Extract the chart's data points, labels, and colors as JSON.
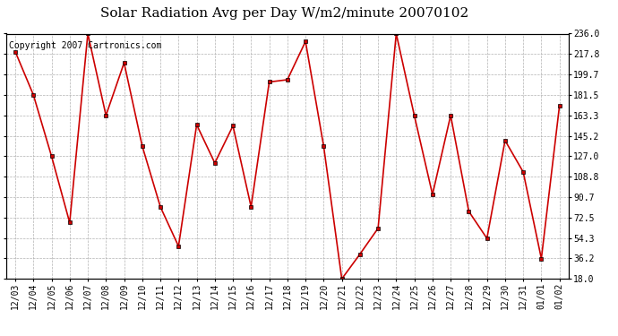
{
  "title": "Solar Radiation Avg per Day W/m2/minute 20070102",
  "copyright": "Copyright 2007 Cartronics.com",
  "dates": [
    "12/03",
    "12/04",
    "12/05",
    "12/06",
    "12/07",
    "12/08",
    "12/09",
    "12/10",
    "12/11",
    "12/12",
    "12/13",
    "12/14",
    "12/15",
    "12/16",
    "12/17",
    "12/18",
    "12/19",
    "12/20",
    "12/21",
    "12/22",
    "12/23",
    "12/24",
    "12/25",
    "12/26",
    "12/27",
    "12/28",
    "12/29",
    "12/30",
    "12/31",
    "01/01",
    "01/02"
  ],
  "values": [
    220,
    181.5,
    127,
    68,
    236,
    163.3,
    210,
    136,
    82,
    47,
    155,
    121,
    154,
    82,
    193,
    195,
    229,
    136,
    18,
    40,
    63,
    236,
    163,
    93,
    163.3,
    78,
    54,
    141,
    113,
    36,
    172
  ],
  "line_color": "#cc0000",
  "marker_color": "#000000",
  "bg_color": "#ffffff",
  "plot_bg_color": "#ffffff",
  "grid_color": "#aaaaaa",
  "y_ticks": [
    18.0,
    36.2,
    54.3,
    72.5,
    90.7,
    108.8,
    127.0,
    145.2,
    163.3,
    181.5,
    199.7,
    217.8,
    236.0
  ],
  "y_min": 18.0,
  "y_max": 236.0,
  "title_fontsize": 11,
  "copyright_fontsize": 7,
  "tick_fontsize": 7,
  "ytick_fontsize": 7
}
